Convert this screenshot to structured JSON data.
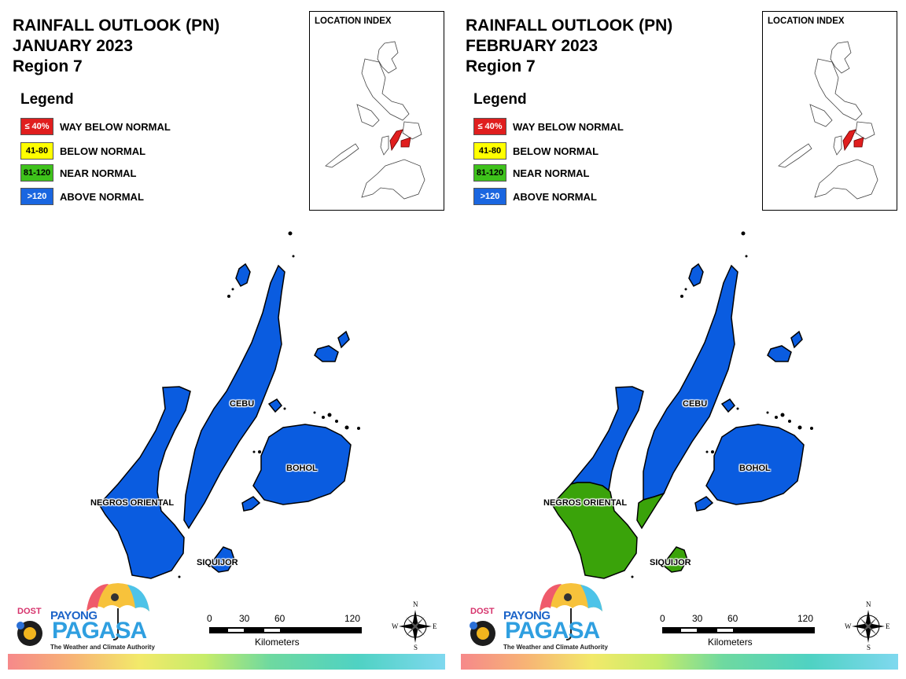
{
  "panels": [
    {
      "title_line1": "RAINFALL OUTLOOK (PN)",
      "title_line2": "JANUARY 2023",
      "title_line3": "Region 7",
      "provinces": {
        "negros_oriental": "#0a5ce0",
        "cebu": "#0a5ce0",
        "bohol": "#0a5ce0",
        "siquijor": "#0a5ce0"
      }
    },
    {
      "title_line1": "RAINFALL OUTLOOK (PN)",
      "title_line2": "FEBRUARY 2023",
      "title_line3": "Region 7",
      "provinces": {
        "negros_oriental": "mixed",
        "cebu": "mixed",
        "bohol": "#0a5ce0",
        "siquijor": "#3aa30a"
      }
    }
  ],
  "legend": {
    "title": "Legend",
    "items": [
      {
        "swatch": "≤ 40%",
        "label": "WAY BELOW NORMAL",
        "color": "#e01e1e",
        "text_color": "#ffffff"
      },
      {
        "swatch": "41-80",
        "label": "BELOW NORMAL",
        "color": "#ffff00",
        "text_color": "#000000"
      },
      {
        "swatch": "81-120",
        "label": "NEAR NORMAL",
        "color": "#3ec21b",
        "text_color": "#000000"
      },
      {
        "swatch": ">120",
        "label": "ABOVE NORMAL",
        "color": "#1a66e0",
        "text_color": "#ffffff"
      }
    ]
  },
  "location_index": "LOCATION INDEX",
  "labels": {
    "cebu": "CEBU",
    "bohol": "BOHOL",
    "negros_oriental": "NEGROS ORIENTAL",
    "siquijor": "SIQUIJOR"
  },
  "colors": {
    "above_normal": "#0a5ce0",
    "near_normal": "#3aa30a",
    "highlight": "#e01e1e"
  },
  "scale": {
    "ticks": [
      "0",
      "30",
      "60",
      "120"
    ],
    "unit": "Kilometers"
  },
  "compass": {
    "n": "N",
    "e": "E",
    "s": "S",
    "w": "W"
  },
  "logo": {
    "dost": "DOST",
    "payong": "PAYONG",
    "pagasa": "PAGASA",
    "tagline": "The Weather and Climate Authority"
  }
}
